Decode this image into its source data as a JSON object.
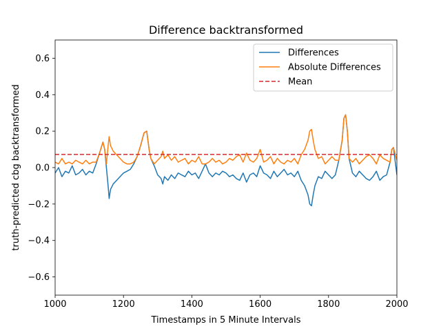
{
  "chart_data": {
    "type": "line",
    "title": "Difference backtransformed",
    "xlabel": "Timestamps in 5 Minute Intervals",
    "ylabel": "truth-predicted cbg backtransformed",
    "xlim": [
      1000,
      2000
    ],
    "ylim": [
      -0.7,
      0.7
    ],
    "x_ticks": [
      "1000",
      "1200",
      "1400",
      "1600",
      "1800",
      "2000"
    ],
    "y_ticks": [
      "−0.6",
      "−0.4",
      "−0.2",
      "0.0",
      "0.2",
      "0.4",
      "0.6"
    ],
    "legend_position": "upper right",
    "grid": false,
    "colors": {
      "differences": "#1f77b4",
      "absolute": "#ff7f0e",
      "mean": "#d62728"
    },
    "series": [
      {
        "name": "Differences",
        "style": "solid",
        "x": [
          1000,
          1010,
          1020,
          1030,
          1040,
          1050,
          1060,
          1070,
          1080,
          1090,
          1100,
          1110,
          1120,
          1130,
          1140,
          1145,
          1150,
          1155,
          1158,
          1162,
          1170,
          1180,
          1190,
          1200,
          1210,
          1220,
          1230,
          1240,
          1250,
          1260,
          1268,
          1275,
          1280,
          1290,
          1300,
          1310,
          1315,
          1320,
          1330,
          1340,
          1350,
          1360,
          1370,
          1380,
          1390,
          1400,
          1410,
          1420,
          1430,
          1440,
          1450,
          1460,
          1470,
          1480,
          1490,
          1500,
          1510,
          1520,
          1530,
          1540,
          1550,
          1560,
          1570,
          1580,
          1590,
          1600,
          1610,
          1620,
          1630,
          1640,
          1650,
          1660,
          1670,
          1680,
          1690,
          1700,
          1710,
          1720,
          1730,
          1740,
          1745,
          1750,
          1755,
          1760,
          1770,
          1780,
          1790,
          1800,
          1810,
          1820,
          1830,
          1840,
          1845,
          1850,
          1855,
          1860,
          1870,
          1880,
          1890,
          1900,
          1910,
          1920,
          1930,
          1940,
          1950,
          1960,
          1970,
          1980,
          1985,
          1990,
          2000
        ],
        "y": [
          -0.03,
          0.0,
          -0.05,
          -0.02,
          -0.03,
          0.01,
          -0.04,
          -0.03,
          -0.01,
          -0.04,
          -0.02,
          -0.03,
          0.02,
          0.08,
          0.14,
          0.1,
          0.0,
          -0.1,
          -0.17,
          -0.12,
          -0.09,
          -0.07,
          -0.05,
          -0.03,
          -0.02,
          -0.01,
          0.02,
          0.06,
          0.12,
          0.19,
          0.2,
          0.1,
          0.05,
          0.01,
          -0.04,
          -0.06,
          -0.09,
          -0.05,
          -0.07,
          -0.04,
          -0.06,
          -0.03,
          -0.04,
          -0.05,
          -0.02,
          -0.04,
          -0.03,
          -0.06,
          -0.02,
          0.02,
          -0.03,
          -0.05,
          -0.03,
          -0.04,
          -0.02,
          -0.03,
          -0.05,
          -0.04,
          -0.06,
          -0.07,
          -0.03,
          -0.08,
          -0.04,
          -0.03,
          -0.05,
          0.01,
          -0.03,
          -0.04,
          -0.06,
          -0.02,
          -0.05,
          -0.03,
          -0.01,
          -0.04,
          -0.03,
          -0.05,
          -0.02,
          -0.07,
          -0.1,
          -0.15,
          -0.2,
          -0.21,
          -0.15,
          -0.1,
          -0.05,
          -0.06,
          -0.02,
          -0.04,
          -0.06,
          -0.04,
          0.04,
          0.15,
          0.27,
          0.29,
          0.2,
          0.05,
          -0.03,
          -0.05,
          -0.02,
          -0.04,
          -0.06,
          -0.07,
          -0.05,
          -0.02,
          -0.07,
          -0.05,
          -0.04,
          0.03,
          0.1,
          0.11,
          -0.04
        ]
      },
      {
        "name": "Absolute Differences",
        "style": "solid",
        "x": [
          1000,
          1010,
          1020,
          1030,
          1040,
          1050,
          1060,
          1070,
          1080,
          1090,
          1100,
          1110,
          1120,
          1130,
          1140,
          1145,
          1150,
          1155,
          1158,
          1162,
          1170,
          1180,
          1190,
          1200,
          1210,
          1220,
          1230,
          1240,
          1250,
          1260,
          1268,
          1275,
          1280,
          1290,
          1300,
          1310,
          1315,
          1320,
          1330,
          1340,
          1350,
          1360,
          1370,
          1380,
          1390,
          1400,
          1410,
          1420,
          1430,
          1440,
          1450,
          1460,
          1470,
          1480,
          1490,
          1500,
          1510,
          1520,
          1530,
          1540,
          1550,
          1560,
          1570,
          1580,
          1590,
          1600,
          1610,
          1620,
          1630,
          1640,
          1650,
          1660,
          1670,
          1680,
          1690,
          1700,
          1710,
          1720,
          1730,
          1740,
          1745,
          1750,
          1755,
          1760,
          1770,
          1780,
          1790,
          1800,
          1810,
          1820,
          1830,
          1840,
          1845,
          1850,
          1855,
          1860,
          1870,
          1880,
          1890,
          1900,
          1910,
          1920,
          1930,
          1940,
          1950,
          1960,
          1970,
          1980,
          1985,
          1990,
          2000
        ],
        "y": [
          0.03,
          0.02,
          0.05,
          0.02,
          0.03,
          0.02,
          0.04,
          0.03,
          0.02,
          0.04,
          0.02,
          0.03,
          0.03,
          0.08,
          0.14,
          0.1,
          0.02,
          0.12,
          0.17,
          0.12,
          0.09,
          0.07,
          0.05,
          0.03,
          0.02,
          0.02,
          0.03,
          0.06,
          0.12,
          0.19,
          0.2,
          0.1,
          0.05,
          0.02,
          0.04,
          0.06,
          0.09,
          0.05,
          0.07,
          0.04,
          0.06,
          0.03,
          0.04,
          0.05,
          0.02,
          0.04,
          0.03,
          0.06,
          0.02,
          0.02,
          0.03,
          0.05,
          0.03,
          0.04,
          0.02,
          0.03,
          0.05,
          0.04,
          0.06,
          0.07,
          0.03,
          0.08,
          0.04,
          0.03,
          0.05,
          0.1,
          0.03,
          0.04,
          0.06,
          0.02,
          0.05,
          0.03,
          0.02,
          0.04,
          0.03,
          0.05,
          0.02,
          0.07,
          0.1,
          0.15,
          0.2,
          0.21,
          0.15,
          0.1,
          0.05,
          0.06,
          0.02,
          0.04,
          0.06,
          0.04,
          0.04,
          0.15,
          0.27,
          0.29,
          0.2,
          0.05,
          0.03,
          0.05,
          0.02,
          0.04,
          0.06,
          0.07,
          0.05,
          0.02,
          0.07,
          0.05,
          0.04,
          0.03,
          0.1,
          0.11,
          0.04
        ]
      },
      {
        "name": "Mean",
        "style": "dashed",
        "x": [
          1000,
          2000
        ],
        "y": [
          0.072,
          0.072
        ]
      }
    ]
  }
}
